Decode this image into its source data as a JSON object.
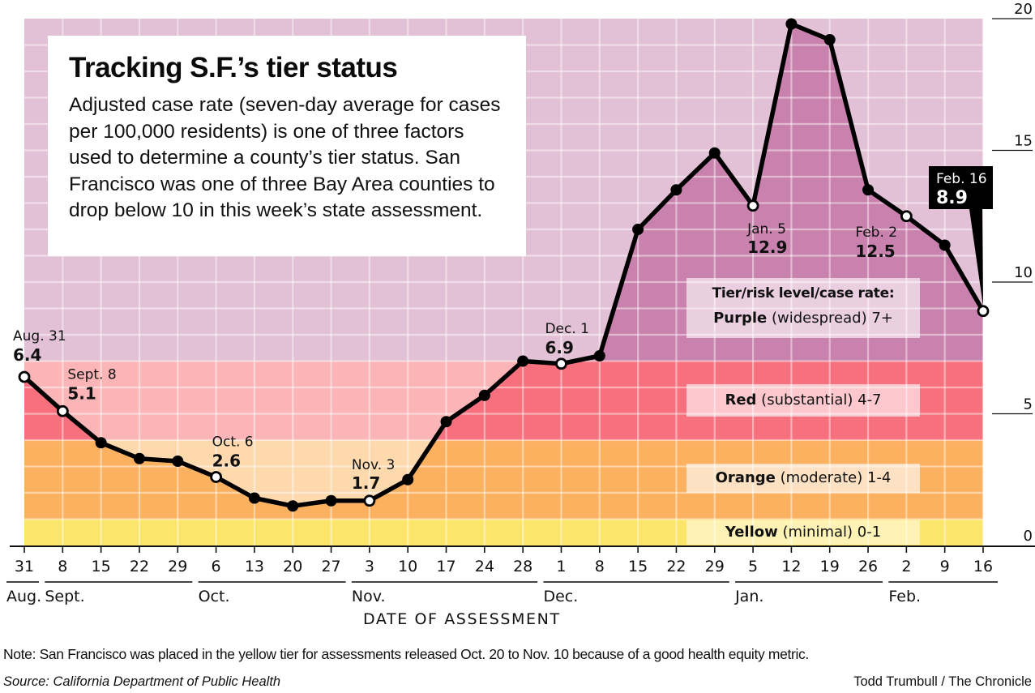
{
  "title": "Tracking S.F.’s tier status",
  "intro": "Adjusted case rate (seven-day average for cases per 100,000 residents) is one of three factors used to determine a county’s tier status. San Francisco was one of three Bay Area counties to drop below 10 in this week’s state assessment.",
  "legend": {
    "heading": "Tier/risk level/case rate:",
    "tiers": [
      {
        "name": "Purple",
        "desc": "(widespread) 7+"
      },
      {
        "name": "Red",
        "desc": "(substantial) 4-7"
      },
      {
        "name": "Orange",
        "desc": "(moderate) 1-4"
      },
      {
        "name": "Yellow",
        "desc": "(minimal) 0-1"
      }
    ]
  },
  "colors": {
    "purple_light": "#E2C1D6",
    "purple_dark": "#C981AE",
    "red_light": "#FBB5B7",
    "red_dark": "#F7707E",
    "orange_light": "#FDD9AD",
    "orange_dark": "#FBB15F",
    "yellow_light": "#FCE76D",
    "yellow_dark": "#FCE56B",
    "line": "#000000"
  },
  "chart_data": {
    "type": "line",
    "title": "Tracking S.F.’s tier status",
    "xlabel": "DATE OF ASSESSMENT",
    "ylabel": "Adjusted case rate",
    "ylim": [
      0,
      20
    ],
    "yticks": [
      0,
      5,
      10,
      15,
      20
    ],
    "grid": true,
    "tier_bands": [
      {
        "name": "Yellow",
        "from": 0,
        "to": 1
      },
      {
        "name": "Orange",
        "from": 1,
        "to": 4
      },
      {
        "name": "Red",
        "from": 4,
        "to": 7
      },
      {
        "name": "Purple",
        "from": 7,
        "to": 20
      }
    ],
    "x": [
      "Aug. 31",
      "Sept. 8",
      "Sept. 15",
      "Sept. 22",
      "Sept. 29",
      "Oct. 6",
      "Oct. 13",
      "Oct. 20",
      "Oct. 27",
      "Nov. 3",
      "Nov. 10",
      "Nov. 17",
      "Nov. 24",
      "Nov. 28",
      "Dec. 1",
      "Dec. 8",
      "Dec. 15",
      "Dec. 22",
      "Dec. 29",
      "Jan. 5",
      "Jan. 12",
      "Jan. 19",
      "Jan. 26",
      "Feb. 2",
      "Feb. 9",
      "Feb. 16"
    ],
    "tick_labels": [
      "31",
      "8",
      "15",
      "22",
      "29",
      "6",
      "13",
      "20",
      "27",
      "3",
      "10",
      "17",
      "24",
      "28",
      "1",
      "8",
      "15",
      "22",
      "29",
      "5",
      "12",
      "19",
      "26",
      "2",
      "9",
      "16"
    ],
    "months": [
      {
        "label": "Aug.",
        "first": 0,
        "last": 0
      },
      {
        "label": "Sept.",
        "first": 1,
        "last": 4
      },
      {
        "label": "Oct.",
        "first": 5,
        "last": 8
      },
      {
        "label": "Nov.",
        "first": 9,
        "last": 13
      },
      {
        "label": "Dec.",
        "first": 14,
        "last": 18
      },
      {
        "label": "Jan.",
        "first": 19,
        "last": 22
      },
      {
        "label": "Feb.",
        "first": 23,
        "last": 25
      }
    ],
    "series": [
      {
        "name": "Adjusted case rate",
        "values": [
          6.4,
          5.1,
          3.9,
          3.3,
          3.2,
          2.6,
          1.8,
          1.5,
          1.7,
          1.7,
          2.5,
          4.7,
          5.7,
          7.0,
          6.9,
          7.2,
          12.0,
          13.5,
          14.9,
          12.9,
          19.8,
          19.2,
          13.5,
          12.5,
          11.4,
          8.9
        ]
      }
    ],
    "hollow_points": [
      0,
      1,
      5,
      9,
      14,
      19,
      23,
      25
    ],
    "annotations": [
      {
        "index": 0,
        "label": "Aug. 31",
        "value": "6.4"
      },
      {
        "index": 1,
        "label": "Sept. 8",
        "value": "5.1"
      },
      {
        "index": 5,
        "label": "Oct. 6",
        "value": "2.6"
      },
      {
        "index": 9,
        "label": "Nov. 3",
        "value": "1.7"
      },
      {
        "index": 14,
        "label": "Dec. 1",
        "value": "6.9"
      },
      {
        "index": 19,
        "label": "Jan. 5",
        "value": "12.9"
      },
      {
        "index": 23,
        "label": "Feb. 2",
        "value": "12.5"
      },
      {
        "index": 25,
        "label": "Feb. 16",
        "value": "8.9",
        "callout": true
      }
    ]
  },
  "footer": {
    "note": "Note: San Francisco was placed in the yellow tier for assessments released Oct. 20 to Nov. 10 because of a good health equity metric.",
    "source": "Source: California Department of Public Health",
    "credit": "Todd Trumbull / The Chronicle"
  }
}
